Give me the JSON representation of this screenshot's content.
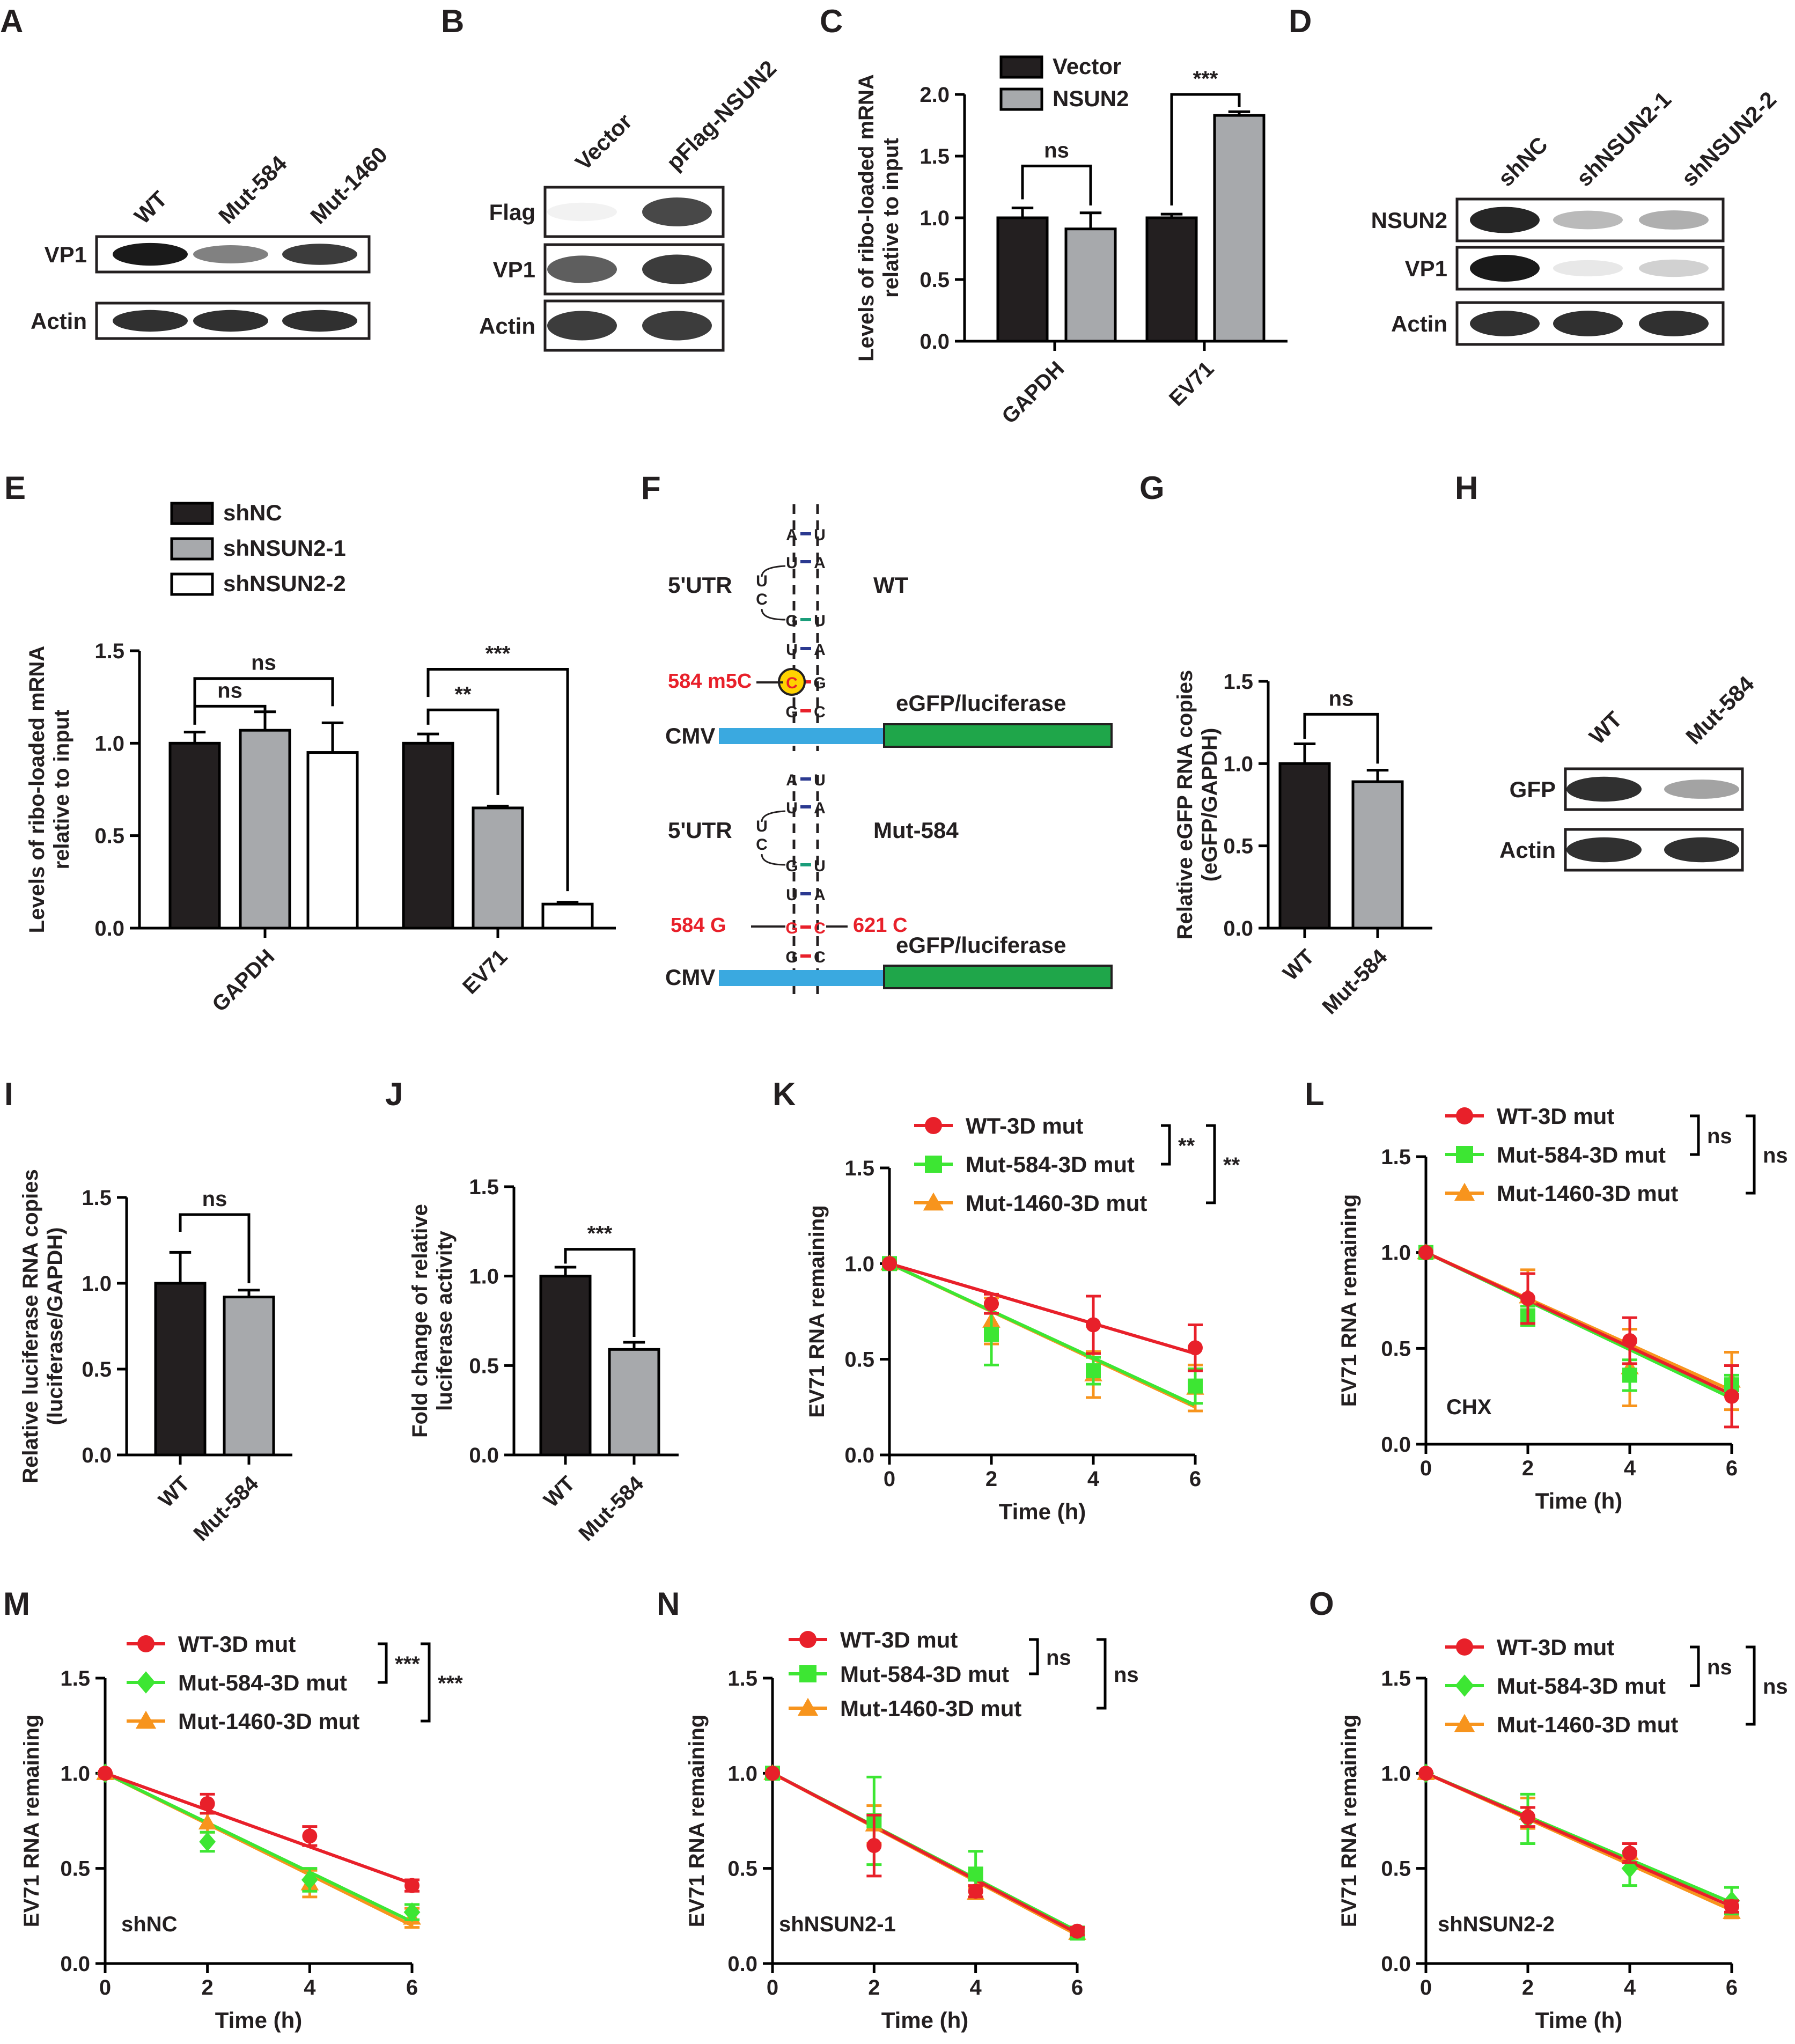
{
  "panels": {
    "A": {
      "letter": "A",
      "lanes": [
        "WT",
        "Mut-584",
        "Mut-1460"
      ],
      "rows": [
        "VP1",
        "Actin"
      ],
      "band_intensity": [
        [
          1.0,
          0.55,
          0.85
        ],
        [
          0.9,
          0.9,
          0.9
        ]
      ]
    },
    "B": {
      "letter": "B",
      "lanes": [
        "Vector",
        "pFlag-NSUN2"
      ],
      "rows": [
        "Flag",
        "VP1",
        "Actin"
      ],
      "band_intensity": [
        [
          0.05,
          0.8
        ],
        [
          0.7,
          0.85
        ],
        [
          0.85,
          0.85
        ]
      ]
    },
    "C": {
      "letter": "C",
      "chart_data": {
        "type": "bar",
        "categories": [
          "GAPDH",
          "EV71"
        ],
        "series": [
          {
            "name": "Vector",
            "values": [
              1.0,
              1.0
            ],
            "errors": [
              0.08,
              0.03
            ],
            "color": "#231f20"
          },
          {
            "name": "NSUN2",
            "values": [
              0.91,
              1.83
            ],
            "errors": [
              0.13,
              0.03
            ],
            "color": "#a7a9ac"
          }
        ],
        "ylabel": "Levels of ribo-loaded mRNA relative to input",
        "ylim": [
          0,
          2.0
        ],
        "yticks": [
          "0.0",
          "0.5",
          "1.0",
          "1.5",
          "2.0"
        ],
        "significance": [
          "ns",
          "***"
        ],
        "legend_position": "top"
      }
    },
    "D": {
      "letter": "D",
      "lanes": [
        "shNC",
        "shNSUN2-1",
        "shNSUN2-2"
      ],
      "rows": [
        "NSUN2",
        "VP1",
        "Actin"
      ],
      "band_intensity": [
        [
          0.95,
          0.3,
          0.35
        ],
        [
          1.0,
          0.1,
          0.2
        ],
        [
          0.9,
          0.9,
          0.9
        ]
      ]
    },
    "E": {
      "letter": "E",
      "chart_data": {
        "type": "bar",
        "categories": [
          "GAPDH",
          "EV71"
        ],
        "series": [
          {
            "name": "shNC",
            "values": [
              1.0,
              1.0
            ],
            "errors": [
              0.06,
              0.05
            ],
            "color": "#231f20"
          },
          {
            "name": "shNSUN2-1",
            "values": [
              1.07,
              0.65
            ],
            "errors": [
              0.1,
              0.01
            ],
            "color": "#a7a9ac"
          },
          {
            "name": "shNSUN2-2",
            "values": [
              0.95,
              0.13
            ],
            "errors": [
              0.16,
              0.01
            ],
            "color": "#ffffff"
          }
        ],
        "ylabel": "Levels of ribo-loaded mRNA relative to input",
        "ylim": [
          0,
          1.5
        ],
        "yticks": [
          "0.0",
          "0.5",
          "1.0",
          "1.5"
        ],
        "significance": [
          "ns",
          "ns",
          "**",
          "***"
        ],
        "legend_position": "top"
      }
    },
    "F": {
      "letter": "F",
      "wt": {
        "region": "5'UTR",
        "label": "WT",
        "site": "584 m5C",
        "modified_base": "C",
        "promoter": "CMV",
        "reporter": "eGFP/luciferase",
        "stem_pairs": [
          [
            "A",
            "U"
          ],
          [
            "U",
            "A"
          ],
          [
            "G",
            "U"
          ],
          [
            "U",
            "A"
          ],
          [
            "C",
            "G"
          ],
          [
            "G",
            "C"
          ]
        ],
        "loop": [
          "U",
          "C"
        ]
      },
      "mut": {
        "region": "5'UTR",
        "label": "Mut-584",
        "site_left": "584 G",
        "site_right": "621 C",
        "promoter": "CMV",
        "reporter": "eGFP/luciferase",
        "stem_pairs": [
          [
            "A",
            "U"
          ],
          [
            "U",
            "A"
          ],
          [
            "G",
            "U"
          ],
          [
            "U",
            "A"
          ],
          [
            "G",
            "C"
          ],
          [
            "G",
            "C"
          ]
        ],
        "loop": [
          "U",
          "C"
        ]
      },
      "colors": {
        "red": "#e8202a",
        "blue": "#3aa9e0",
        "green": "#1fa64a",
        "pair_blue": "#2b3990",
        "pair_green": "#1a9d7a",
        "highlight": "#ffd200"
      }
    },
    "G": {
      "letter": "G",
      "chart_data": {
        "type": "bar",
        "categories": [
          "WT",
          "Mut-584"
        ],
        "values": [
          1.0,
          0.89
        ],
        "errors": [
          0.12,
          0.07
        ],
        "colors": [
          "#231f20",
          "#a7a9ac"
        ],
        "ylabel": "Relative eGFP RNA copies (eGFP/GAPDH)",
        "ylim": [
          0,
          1.5
        ],
        "yticks": [
          "0.0",
          "0.5",
          "1.0",
          "1.5"
        ],
        "significance": "ns"
      }
    },
    "H": {
      "letter": "H",
      "lanes": [
        "WT",
        "Mut-584"
      ],
      "rows": [
        "GFP",
        "Actin"
      ],
      "band_intensity": [
        [
          0.9,
          0.4
        ],
        [
          0.9,
          0.9
        ]
      ]
    },
    "I": {
      "letter": "I",
      "chart_data": {
        "type": "bar",
        "categories": [
          "WT",
          "Mut-584"
        ],
        "values": [
          1.0,
          0.92
        ],
        "errors": [
          0.18,
          0.04
        ],
        "colors": [
          "#231f20",
          "#a7a9ac"
        ],
        "ylabel": "Relative luciferase RNA copies (luciferase/GAPDH)",
        "ylim": [
          0,
          1.5
        ],
        "yticks": [
          "0.0",
          "0.5",
          "1.0",
          "1.5"
        ],
        "significance": "ns"
      }
    },
    "J": {
      "letter": "J",
      "chart_data": {
        "type": "bar",
        "categories": [
          "WT",
          "Mut-584"
        ],
        "values": [
          1.0,
          0.59
        ],
        "errors": [
          0.05,
          0.04
        ],
        "colors": [
          "#231f20",
          "#a7a9ac"
        ],
        "ylabel": "Fold change of relative luciferase activity",
        "ylim": [
          0,
          1.5
        ],
        "yticks": [
          "0.0",
          "0.5",
          "1.0",
          "1.5"
        ],
        "significance": "***"
      }
    },
    "K": {
      "letter": "K",
      "chart_data": {
        "type": "line",
        "x": [
          0,
          2,
          4,
          6
        ],
        "xlabel": "Time (h)",
        "ylabel": "EV71 RNA remaining",
        "ylim": [
          0,
          1.5
        ],
        "xticks": [
          "0",
          "2",
          "4",
          "6"
        ],
        "yticks": [
          "0.0",
          "0.5",
          "1.0",
          "1.5"
        ],
        "series": [
          {
            "name": "WT-3D mut",
            "values": [
              1.0,
              0.79,
              0.68,
              0.56
            ],
            "errors": [
              0,
              0.05,
              0.15,
              0.12
            ],
            "fit": [
              1.0,
              0.53
            ],
            "color": "#e8202a",
            "marker": "circle"
          },
          {
            "name": "Mut-584-3D mut",
            "values": [
              1.0,
              0.63,
              0.44,
              0.36
            ],
            "errors": [
              0,
              0.16,
              0.07,
              0.09
            ],
            "fit": [
              1.0,
              0.26
            ],
            "color": "#3de633",
            "marker": "square"
          },
          {
            "name": "Mut-1460-3D mut",
            "values": [
              1.0,
              0.7,
              0.42,
              0.35
            ],
            "errors": [
              0,
              0.12,
              0.12,
              0.12
            ],
            "fit": [
              1.0,
              0.25
            ],
            "color": "#f7941d",
            "marker": "triangle"
          }
        ],
        "significance": [
          "**",
          "**"
        ],
        "note": ""
      }
    },
    "L": {
      "letter": "L",
      "chart_data": {
        "type": "line",
        "x": [
          0,
          2,
          4,
          6
        ],
        "xlabel": "Time (h)",
        "ylabel": "EV71 RNA remaining",
        "ylim": [
          0,
          1.5
        ],
        "xticks": [
          "0",
          "2",
          "4",
          "6"
        ],
        "yticks": [
          "0.0",
          "0.5",
          "1.0",
          "1.5"
        ],
        "series": [
          {
            "name": "WT-3D mut",
            "values": [
              1.0,
              0.76,
              0.54,
              0.25
            ],
            "errors": [
              0,
              0.13,
              0.12,
              0.16
            ],
            "fit": [
              1.0,
              0.26
            ],
            "color": "#e8202a",
            "marker": "circle"
          },
          {
            "name": "Mut-584-3D mut",
            "values": [
              1.0,
              0.67,
              0.36,
              0.31
            ],
            "errors": [
              0,
              0.05,
              0.08,
              0.05
            ],
            "fit": [
              1.0,
              0.24
            ],
            "color": "#3de633",
            "marker": "square"
          },
          {
            "name": "Mut-1460-3D mut",
            "values": [
              1.0,
              0.77,
              0.4,
              0.33
            ],
            "errors": [
              0,
              0.14,
              0.2,
              0.15
            ],
            "fit": [
              1.0,
              0.28
            ],
            "color": "#f7941d",
            "marker": "triangle"
          }
        ],
        "significance": [
          "ns",
          "ns"
        ],
        "note": "CHX"
      }
    },
    "M": {
      "letter": "M",
      "chart_data": {
        "type": "line",
        "x": [
          0,
          2,
          4,
          6
        ],
        "xlabel": "Time (h)",
        "ylabel": "EV71 RNA remaining",
        "ylim": [
          0,
          1.5
        ],
        "xticks": [
          "0",
          "2",
          "4",
          "6"
        ],
        "yticks": [
          "0.0",
          "0.5",
          "1.0",
          "1.5"
        ],
        "series": [
          {
            "name": "WT-3D mut",
            "values": [
              1.0,
              0.84,
              0.67,
              0.41
            ],
            "errors": [
              0,
              0.05,
              0.05,
              0.03
            ],
            "fit": [
              1.0,
              0.42
            ],
            "color": "#e8202a",
            "marker": "circle"
          },
          {
            "name": "Mut-584-3D mut",
            "values": [
              1.0,
              0.64,
              0.44,
              0.27
            ],
            "errors": [
              0,
              0.05,
              0.06,
              0.04
            ],
            "fit": [
              1.0,
              0.22
            ],
            "color": "#3de633",
            "marker": "diamond"
          },
          {
            "name": "Mut-1460-3D mut",
            "values": [
              1.0,
              0.74,
              0.42,
              0.24
            ],
            "errors": [
              0,
              0.05,
              0.07,
              0.05
            ],
            "fit": [
              1.0,
              0.2
            ],
            "color": "#f7941d",
            "marker": "triangle"
          }
        ],
        "significance": [
          "***",
          "***"
        ],
        "note": "shNC"
      }
    },
    "N": {
      "letter": "N",
      "chart_data": {
        "type": "line",
        "x": [
          0,
          2,
          4,
          6
        ],
        "xlabel": "Time (h)",
        "ylabel": "EV71 RNA remaining",
        "ylim": [
          0,
          1.5
        ],
        "xticks": [
          "0",
          "2",
          "4",
          "6"
        ],
        "yticks": [
          "0.0",
          "0.5",
          "1.0",
          "1.5"
        ],
        "series": [
          {
            "name": "WT-3D mut",
            "values": [
              1.0,
              0.62,
              0.38,
              0.17
            ],
            "errors": [
              0,
              0.16,
              0.03,
              0.02
            ],
            "fit": [
              1.0,
              0.16
            ],
            "color": "#e8202a",
            "marker": "circle"
          },
          {
            "name": "Mut-584-3D mut",
            "values": [
              1.0,
              0.75,
              0.47,
              0.16
            ],
            "errors": [
              0,
              0.23,
              0.12,
              0.02
            ],
            "fit": [
              1.0,
              0.17
            ],
            "color": "#3de633",
            "marker": "square"
          },
          {
            "name": "Mut-1460-3D mut",
            "values": [
              1.0,
              0.73,
              0.37,
              0.16
            ],
            "errors": [
              0,
              0.1,
              0.03,
              0.02
            ],
            "fit": [
              1.0,
              0.15
            ],
            "color": "#f7941d",
            "marker": "triangle"
          }
        ],
        "significance": [
          "ns",
          "ns"
        ],
        "note": "shNSUN2-1"
      }
    },
    "O": {
      "letter": "O",
      "chart_data": {
        "type": "line",
        "x": [
          0,
          2,
          4,
          6
        ],
        "xlabel": "Time (h)",
        "ylabel": "EV71 RNA remaining",
        "ylim": [
          0,
          1.5
        ],
        "xticks": [
          "0",
          "2",
          "4",
          "6"
        ],
        "yticks": [
          "0.0",
          "0.5",
          "1.0",
          "1.5"
        ],
        "series": [
          {
            "name": "WT-3D mut",
            "values": [
              1.0,
              0.77,
              0.58,
              0.3
            ],
            "errors": [
              0,
              0.05,
              0.05,
              0.03
            ],
            "fit": [
              1.0,
              0.3
            ],
            "color": "#e8202a",
            "marker": "circle"
          },
          {
            "name": "Mut-584-3D mut",
            "values": [
              1.0,
              0.76,
              0.5,
              0.33
            ],
            "errors": [
              0,
              0.13,
              0.09,
              0.07
            ],
            "fit": [
              1.0,
              0.32
            ],
            "color": "#3de633",
            "marker": "diamond"
          },
          {
            "name": "Mut-1460-3D mut",
            "values": [
              1.0,
              0.79,
              0.58,
              0.27
            ],
            "errors": [
              0,
              0.08,
              0.05,
              0.03
            ],
            "fit": [
              1.0,
              0.28
            ],
            "color": "#f7941d",
            "marker": "triangle"
          }
        ],
        "significance": [
          "ns",
          "ns"
        ],
        "note": "shNSUN2-2"
      }
    }
  }
}
